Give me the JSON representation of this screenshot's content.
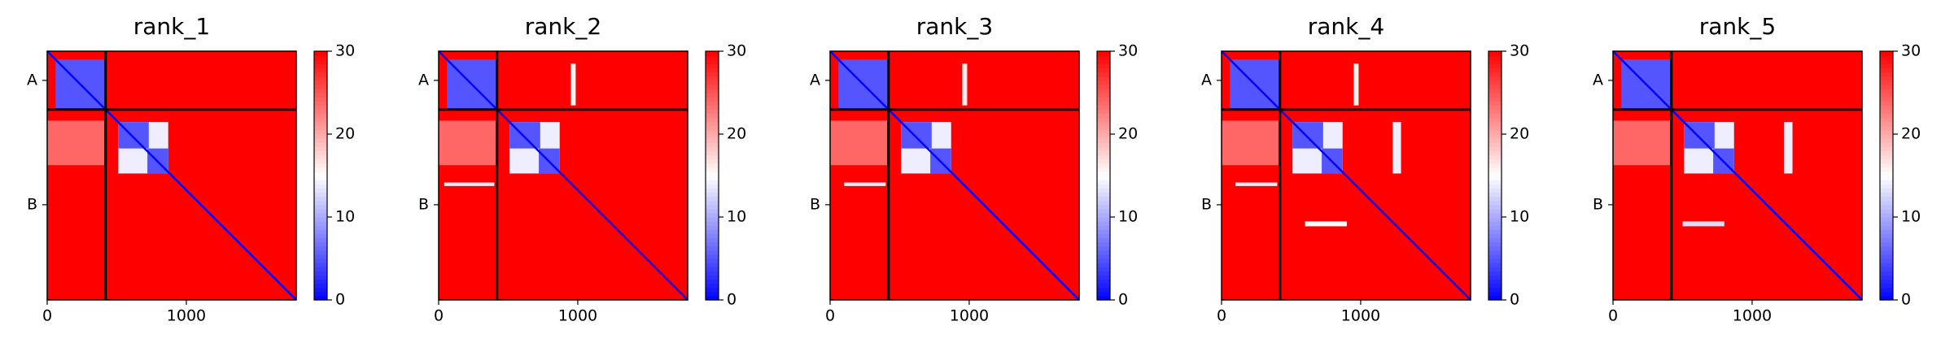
{
  "chart_data": [
    {
      "type": "heatmap",
      "title": "rank_1",
      "xlim": [
        0,
        1790
      ],
      "ylim": [
        1790,
        0
      ],
      "xticks": [
        0,
        1000
      ],
      "yticks": [
        {
          "value": 210,
          "label": "A"
        },
        {
          "value": 1105,
          "label": "B"
        }
      ],
      "clim": [
        0,
        30
      ],
      "cticks": [
        0,
        10,
        20,
        30
      ],
      "background": 30,
      "chain_breaks": [
        420
      ],
      "diagonal": 0,
      "blocks": [
        {
          "x": [
            60,
            420
          ],
          "y": [
            60,
            420
          ],
          "value": 5
        },
        {
          "x": [
            0,
            410
          ],
          "y": [
            500,
            820
          ],
          "value": 24
        },
        {
          "x": [
            510,
            870
          ],
          "y": [
            510,
            880
          ],
          "value": 14
        },
        {
          "x": [
            510,
            730
          ],
          "y": [
            510,
            700
          ],
          "value": 5
        },
        {
          "x": [
            720,
            870
          ],
          "y": [
            700,
            880
          ],
          "value": 5
        }
      ]
    },
    {
      "type": "heatmap",
      "title": "rank_2",
      "xlim": [
        0,
        1790
      ],
      "ylim": [
        1790,
        0
      ],
      "xticks": [
        0,
        1000
      ],
      "yticks": [
        {
          "value": 210,
          "label": "A"
        },
        {
          "value": 1105,
          "label": "B"
        }
      ],
      "clim": [
        0,
        30
      ],
      "cticks": [
        0,
        10,
        20,
        30
      ],
      "background": 30,
      "chain_breaks": [
        420
      ],
      "diagonal": 0,
      "blocks": [
        {
          "x": [
            60,
            420
          ],
          "y": [
            60,
            420
          ],
          "value": 5
        },
        {
          "x": [
            950,
            985
          ],
          "y": [
            90,
            390
          ],
          "value": 16
        },
        {
          "x": [
            0,
            410
          ],
          "y": [
            500,
            820
          ],
          "value": 24
        },
        {
          "x": [
            40,
            400
          ],
          "y": [
            945,
            970
          ],
          "value": 14
        },
        {
          "x": [
            510,
            870
          ],
          "y": [
            510,
            880
          ],
          "value": 14
        },
        {
          "x": [
            510,
            730
          ],
          "y": [
            510,
            700
          ],
          "value": 5
        },
        {
          "x": [
            720,
            870
          ],
          "y": [
            700,
            880
          ],
          "value": 5
        }
      ]
    },
    {
      "type": "heatmap",
      "title": "rank_3",
      "xlim": [
        0,
        1790
      ],
      "ylim": [
        1790,
        0
      ],
      "xticks": [
        0,
        1000
      ],
      "yticks": [
        {
          "value": 210,
          "label": "A"
        },
        {
          "value": 1105,
          "label": "B"
        }
      ],
      "clim": [
        0,
        30
      ],
      "cticks": [
        0,
        10,
        20,
        30
      ],
      "background": 30,
      "chain_breaks": [
        420
      ],
      "diagonal": 0,
      "blocks": [
        {
          "x": [
            60,
            420
          ],
          "y": [
            60,
            420
          ],
          "value": 5
        },
        {
          "x": [
            950,
            985
          ],
          "y": [
            90,
            390
          ],
          "value": 16
        },
        {
          "x": [
            0,
            410
          ],
          "y": [
            500,
            820
          ],
          "value": 24
        },
        {
          "x": [
            100,
            400
          ],
          "y": [
            945,
            970
          ],
          "value": 14
        },
        {
          "x": [
            510,
            870
          ],
          "y": [
            510,
            880
          ],
          "value": 14
        },
        {
          "x": [
            510,
            730
          ],
          "y": [
            510,
            700
          ],
          "value": 5
        },
        {
          "x": [
            720,
            870
          ],
          "y": [
            700,
            880
          ],
          "value": 5
        }
      ]
    },
    {
      "type": "heatmap",
      "title": "rank_4",
      "xlim": [
        0,
        1790
      ],
      "ylim": [
        1790,
        0
      ],
      "xticks": [
        0,
        1000
      ],
      "yticks": [
        {
          "value": 210,
          "label": "A"
        },
        {
          "value": 1105,
          "label": "B"
        }
      ],
      "clim": [
        0,
        30
      ],
      "cticks": [
        0,
        10,
        20,
        30
      ],
      "background": 30,
      "chain_breaks": [
        420
      ],
      "diagonal": 0,
      "blocks": [
        {
          "x": [
            60,
            420
          ],
          "y": [
            60,
            420
          ],
          "value": 5
        },
        {
          "x": [
            950,
            985
          ],
          "y": [
            90,
            390
          ],
          "value": 16
        },
        {
          "x": [
            0,
            410
          ],
          "y": [
            500,
            820
          ],
          "value": 24
        },
        {
          "x": [
            100,
            400
          ],
          "y": [
            945,
            970
          ],
          "value": 14
        },
        {
          "x": [
            510,
            870
          ],
          "y": [
            510,
            880
          ],
          "value": 14
        },
        {
          "x": [
            510,
            730
          ],
          "y": [
            510,
            700
          ],
          "value": 5
        },
        {
          "x": [
            720,
            870
          ],
          "y": [
            700,
            880
          ],
          "value": 5
        },
        {
          "x": [
            1230,
            1290
          ],
          "y": [
            510,
            880
          ],
          "value": 14
        },
        {
          "x": [
            600,
            900
          ],
          "y": [
            1225,
            1260
          ],
          "value": 15
        }
      ]
    },
    {
      "type": "heatmap",
      "title": "rank_5",
      "xlim": [
        0,
        1790
      ],
      "ylim": [
        1790,
        0
      ],
      "xticks": [
        0,
        1000
      ],
      "yticks": [
        {
          "value": 210,
          "label": "A"
        },
        {
          "value": 1105,
          "label": "B"
        }
      ],
      "clim": [
        0,
        30
      ],
      "cticks": [
        0,
        10,
        20,
        30
      ],
      "background": 30,
      "chain_breaks": [
        420
      ],
      "diagonal": 0,
      "blocks": [
        {
          "x": [
            60,
            420
          ],
          "y": [
            60,
            420
          ],
          "value": 5
        },
        {
          "x": [
            0,
            410
          ],
          "y": [
            500,
            820
          ],
          "value": 24
        },
        {
          "x": [
            510,
            870
          ],
          "y": [
            510,
            880
          ],
          "value": 14
        },
        {
          "x": [
            510,
            730
          ],
          "y": [
            510,
            700
          ],
          "value": 5
        },
        {
          "x": [
            720,
            870
          ],
          "y": [
            700,
            880
          ],
          "value": 5
        },
        {
          "x": [
            1230,
            1290
          ],
          "y": [
            510,
            880
          ],
          "value": 14
        },
        {
          "x": [
            500,
            800
          ],
          "y": [
            1225,
            1260
          ],
          "value": 13
        }
      ]
    }
  ]
}
